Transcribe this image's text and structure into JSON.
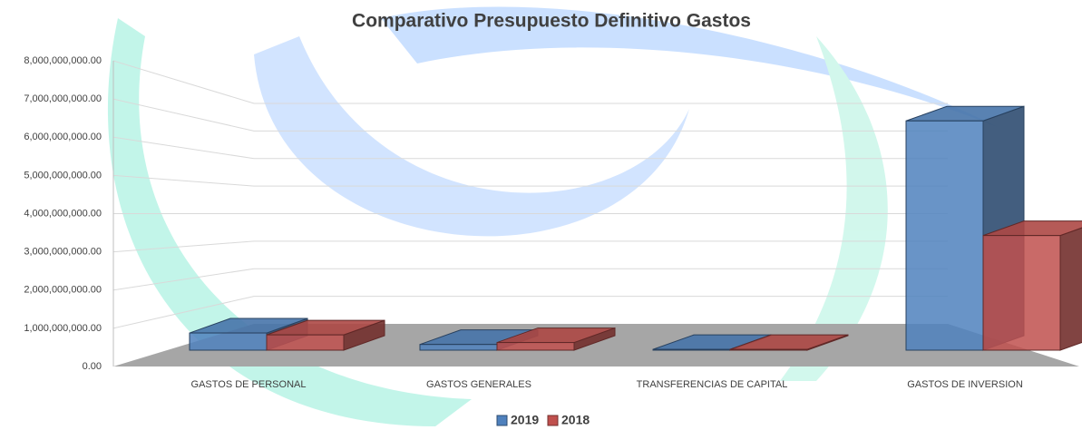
{
  "chart_data": {
    "type": "bar",
    "title": "Comparativo Presupuesto Definitivo Gastos",
    "categories": [
      "GASTOS DE PERSONAL",
      "GASTOS GENERALES",
      "TRANSFERENCIAS DE CAPITAL",
      "GASTOS DE INVERSION"
    ],
    "series": [
      {
        "name": "2019",
        "color": "#4f81bd",
        "values": [
          450000000,
          150000000,
          20000000,
          6000000000
        ]
      },
      {
        "name": "2018",
        "color": "#c0504d",
        "values": [
          400000000,
          200000000,
          20000000,
          3000000000
        ]
      }
    ],
    "ylim": [
      0,
      8000000000
    ],
    "yticks": [
      {
        "value": 0,
        "label": "0.00"
      },
      {
        "value": 1000000000,
        "label": "1,000,000,000.00"
      },
      {
        "value": 2000000000,
        "label": "2,000,000,000.00"
      },
      {
        "value": 3000000000,
        "label": "3,000,000,000.00"
      },
      {
        "value": 4000000000,
        "label": "4,000,000,000.00"
      },
      {
        "value": 5000000000,
        "label": "5,000,000,000.00"
      },
      {
        "value": 6000000000,
        "label": "6,000,000,000.00"
      },
      {
        "value": 7000000000,
        "label": "7,000,000,000.00"
      },
      {
        "value": 8000000000,
        "label": "8,000,000,000.00"
      }
    ],
    "grid": true
  }
}
